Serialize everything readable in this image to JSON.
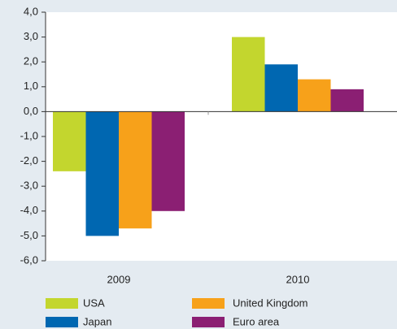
{
  "chart_data": {
    "type": "bar",
    "categories": [
      "2009",
      "2010"
    ],
    "series": [
      {
        "name": "USA",
        "color": "#c3d62e",
        "values": [
          -2.4,
          3.0
        ]
      },
      {
        "name": "Japan",
        "color": "#0067b1",
        "values": [
          -5.0,
          1.9
        ]
      },
      {
        "name": "United Kingdom",
        "color": "#f7a11a",
        "values": [
          -4.7,
          1.3
        ]
      },
      {
        "name": "Euro area",
        "color": "#8b1f73",
        "values": [
          -4.0,
          0.9
        ]
      }
    ],
    "ylim": [
      -6,
      4
    ],
    "yticks": [
      {
        "value": 4,
        "label": "4,0"
      },
      {
        "value": 3,
        "label": "3,0"
      },
      {
        "value": 2,
        "label": "2,0"
      },
      {
        "value": 1,
        "label": "1,0"
      },
      {
        "value": 0,
        "label": "0,0"
      },
      {
        "value": -1,
        "label": "-1,0"
      },
      {
        "value": -2,
        "label": "-2,0"
      },
      {
        "value": -3,
        "label": "-3,0"
      },
      {
        "value": -4,
        "label": "-4,0"
      },
      {
        "value": -5,
        "label": "-5,0"
      },
      {
        "value": -6,
        "label": "-6,0"
      }
    ],
    "grid": false
  }
}
